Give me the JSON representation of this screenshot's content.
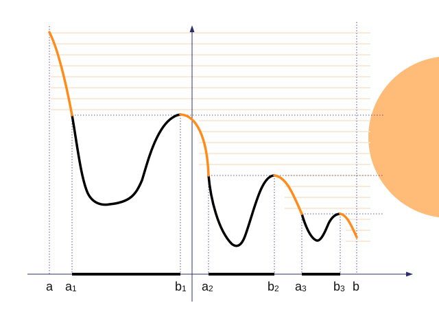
{
  "colors": {
    "background": "#ffffff",
    "curve": "#000000",
    "ascending_segment": "#ff8c1a",
    "hatching": "#fbe3cc",
    "sun_disc": "#ffbb78",
    "axis": "#2c2c6e",
    "guide_lines": "#2c2c6e",
    "interval_bars": "#000000"
  },
  "labels": {
    "a": "a",
    "a1_base": "a",
    "a1_sub": "1",
    "b1_base": "b",
    "b1_sub": "1",
    "a2_base": "a",
    "a2_sub": "2",
    "b2_base": "b",
    "b2_sub": "2",
    "a3_base": "a",
    "a3_sub": "3",
    "b3_base": "b",
    "b3_sub": "3",
    "b": "b"
  },
  "icons": {
    "sun_disc": "sun-disc-icon"
  }
}
